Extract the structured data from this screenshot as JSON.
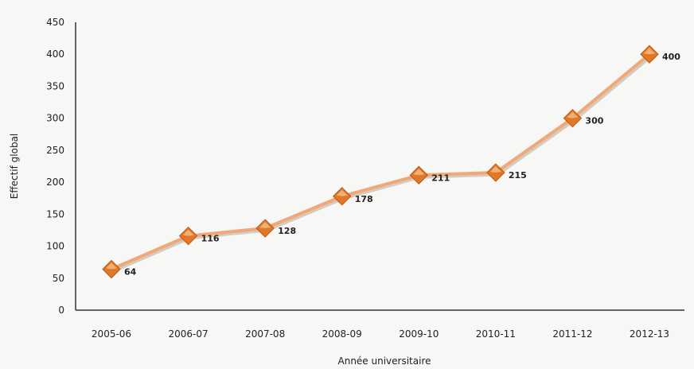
{
  "chart_data": {
    "type": "line",
    "title": "",
    "xlabel": "Année universitaire",
    "ylabel": "Effectif global",
    "ylim": [
      0,
      450
    ],
    "yticks": [
      0,
      50,
      100,
      150,
      200,
      250,
      300,
      350,
      400,
      450
    ],
    "grid": false,
    "legend": "none",
    "categories": [
      "2005-06",
      "2006-07",
      "2007-08",
      "2008-09",
      "2009-10",
      "2010-11",
      "2011-12",
      "2012-13"
    ],
    "series": [
      {
        "values": [
          64,
          116,
          128,
          178,
          211,
          215,
          300,
          400
        ],
        "data_labels": [
          "64",
          "116",
          "128",
          "178",
          "211",
          "215",
          "300",
          "400"
        ],
        "line_color": "#f0a878",
        "marker_color": "#e07828",
        "marker": "diamond"
      }
    ]
  }
}
